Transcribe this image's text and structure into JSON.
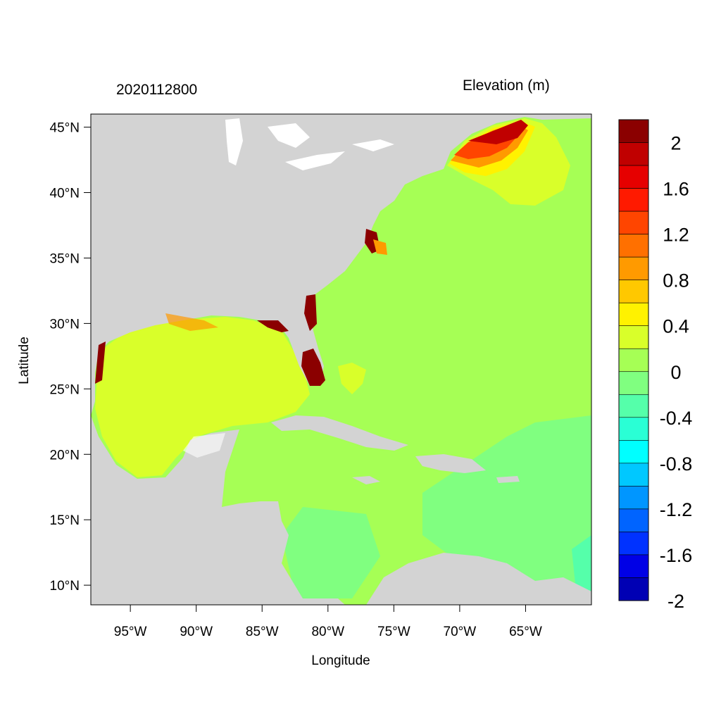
{
  "map": {
    "date_label": "2020112800",
    "colorbar_title": "Elevation (m)",
    "xlabel": "Longitude",
    "ylabel": "Latitude",
    "lon_range": [
      -98,
      -60
    ],
    "lat_range": [
      8.5,
      46
    ],
    "lon_ticks": [
      "95°W",
      "90°W",
      "85°W",
      "80°W",
      "75°W",
      "70°W",
      "65°W"
    ],
    "lon_tick_values": [
      -95,
      -90,
      -85,
      -80,
      -75,
      -70,
      -65
    ],
    "lat_ticks": [
      "45°N",
      "40°N",
      "35°N",
      "30°N",
      "25°N",
      "20°N",
      "15°N",
      "10°N"
    ],
    "lat_tick_values": [
      45,
      40,
      35,
      30,
      25,
      20,
      15,
      10
    ],
    "land_color": "#d3d3d3"
  },
  "colorbar": {
    "labels": [
      "2",
      "1.6",
      "1.2",
      "0.8",
      "0.4",
      "0",
      "-0.4",
      "-0.8",
      "-1.2",
      "-1.6",
      "-2"
    ],
    "colors_top_to_bottom": [
      "#8b0000",
      "#c00000",
      "#e60000",
      "#ff1a00",
      "#ff4500",
      "#ff7000",
      "#ff9a00",
      "#ffc800",
      "#fff200",
      "#d9ff2a",
      "#a6ff55",
      "#80ff80",
      "#55ffaa",
      "#2affd5",
      "#00ffff",
      "#00c8ff",
      "#0096ff",
      "#0064ff",
      "#0032ff",
      "#0000e6",
      "#0000b4"
    ]
  }
}
